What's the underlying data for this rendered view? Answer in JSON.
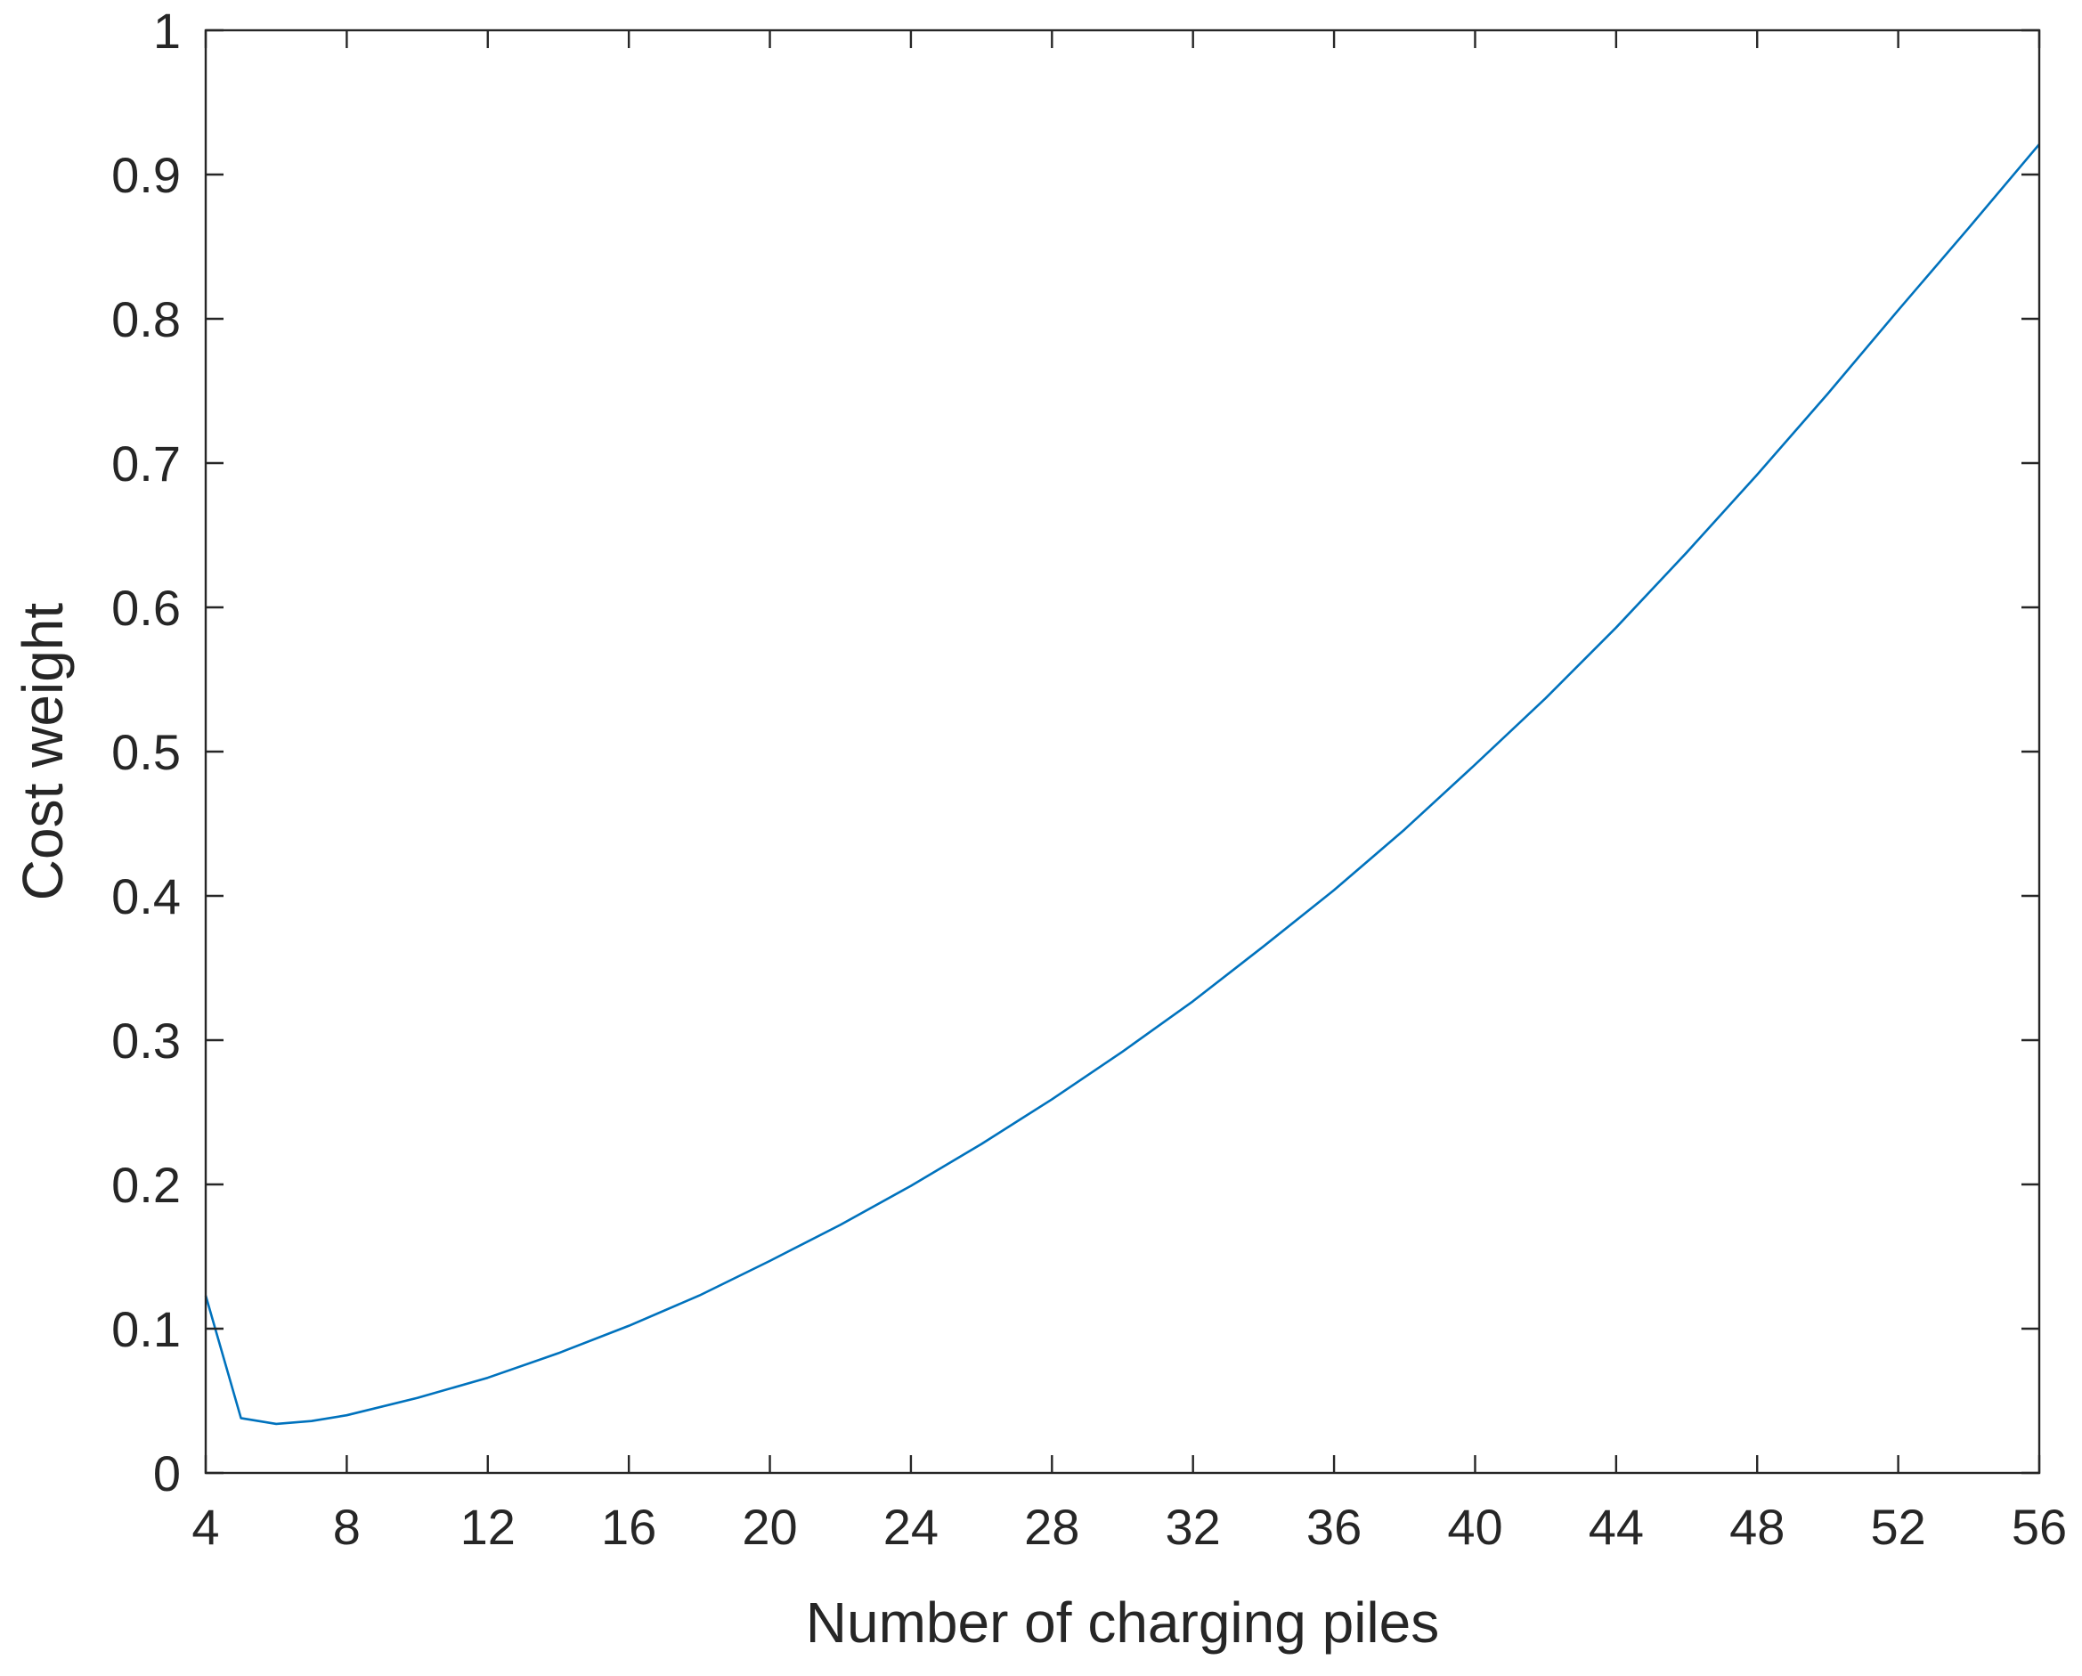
{
  "chart_data": {
    "type": "line",
    "title": "",
    "xlabel": "Number of charging piles",
    "ylabel": "Cost weight",
    "xlim": [
      4,
      56
    ],
    "ylim": [
      0,
      1
    ],
    "xticks": [
      4,
      8,
      12,
      16,
      20,
      24,
      28,
      32,
      36,
      40,
      44,
      48,
      52,
      56
    ],
    "yticks": [
      0,
      0.1,
      0.2,
      0.3,
      0.4,
      0.5,
      0.6,
      0.7,
      0.8,
      0.9,
      1
    ],
    "xtick_labels": [
      "4",
      "8",
      "12",
      "16",
      "20",
      "24",
      "28",
      "32",
      "36",
      "40",
      "44",
      "48",
      "52",
      "56"
    ],
    "ytick_labels": [
      "0",
      "0.1",
      "0.2",
      "0.3",
      "0.4",
      "0.5",
      "0.6",
      "0.7",
      "0.8",
      "0.9",
      "1"
    ],
    "grid": false,
    "box": true,
    "series": [
      {
        "color": "#0072bd",
        "x": [
          4,
          5,
          6,
          7,
          8,
          10,
          12,
          14,
          16,
          18,
          20,
          22,
          24,
          26,
          28,
          30,
          32,
          34,
          36,
          38,
          40,
          42,
          44,
          46,
          48,
          50,
          52,
          54,
          56
        ],
        "y": [
          0.123,
          0.038,
          0.034,
          0.036,
          0.04,
          0.052,
          0.066,
          0.083,
          0.102,
          0.123,
          0.147,
          0.172,
          0.199,
          0.228,
          0.259,
          0.292,
          0.327,
          0.365,
          0.404,
          0.446,
          0.491,
          0.537,
          0.586,
          0.638,
          0.692,
          0.748,
          0.806,
          0.863,
          0.921
        ]
      }
    ]
  }
}
